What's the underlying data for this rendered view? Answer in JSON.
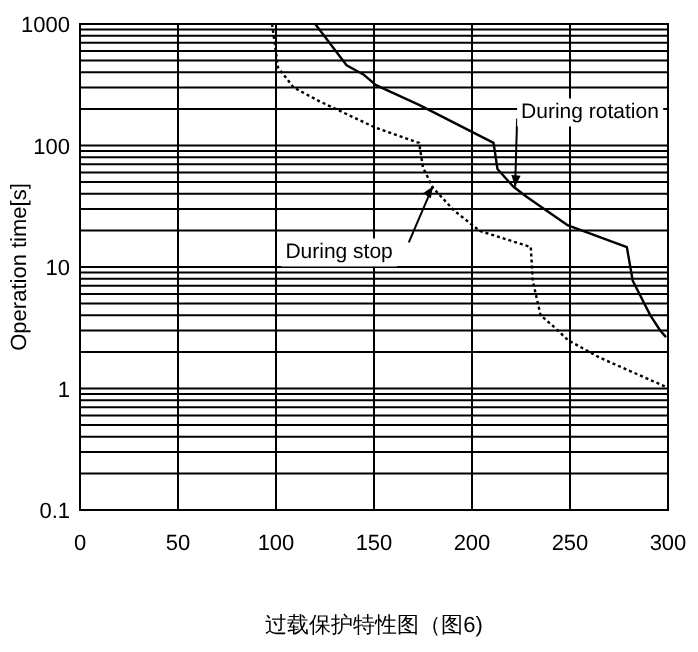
{
  "chart_data": {
    "type": "line",
    "title": "过载保护特性图（图6)",
    "ylabel": "Operation time[s]",
    "xlim": [
      0,
      300
    ],
    "xticks": [
      0,
      50,
      100,
      150,
      200,
      250,
      300
    ],
    "ylim": [
      0.1,
      1000
    ],
    "yticks": [
      {
        "value": 0.1,
        "label": "0.1"
      },
      1,
      10,
      100,
      1000
    ],
    "log": "y",
    "grid": true,
    "series": [
      {
        "color": "#000000",
        "line_style": "solid",
        "x": [
          120,
          136,
          145,
          151,
          173,
          211,
          213,
          221,
          228,
          249,
          279,
          282,
          291,
          296,
          299
        ],
        "values": [
          1000,
          458,
          380,
          314,
          216,
          105,
          64,
          46,
          37.7,
          22,
          14.6,
          7.7,
          4.0,
          3.0,
          2.65
        ]
      },
      {
        "color": "#000000",
        "line_style": "dotted",
        "x": [
          98,
          101,
          109,
          122,
          150,
          173,
          175,
          180,
          191,
          204,
          230,
          231,
          235,
          242,
          249,
          265,
          299
        ],
        "values": [
          1000,
          440,
          300,
          232,
          142,
          105,
          66,
          45,
          29,
          19.8,
          14.6,
          7.7,
          4.0,
          3.2,
          2.5,
          1.8,
          1.03
        ]
      }
    ],
    "annotations": [
      {
        "text": "During rotation",
        "x": 222,
        "y": 46
      },
      {
        "text": "During stop",
        "x": 180,
        "y": 46
      }
    ]
  }
}
